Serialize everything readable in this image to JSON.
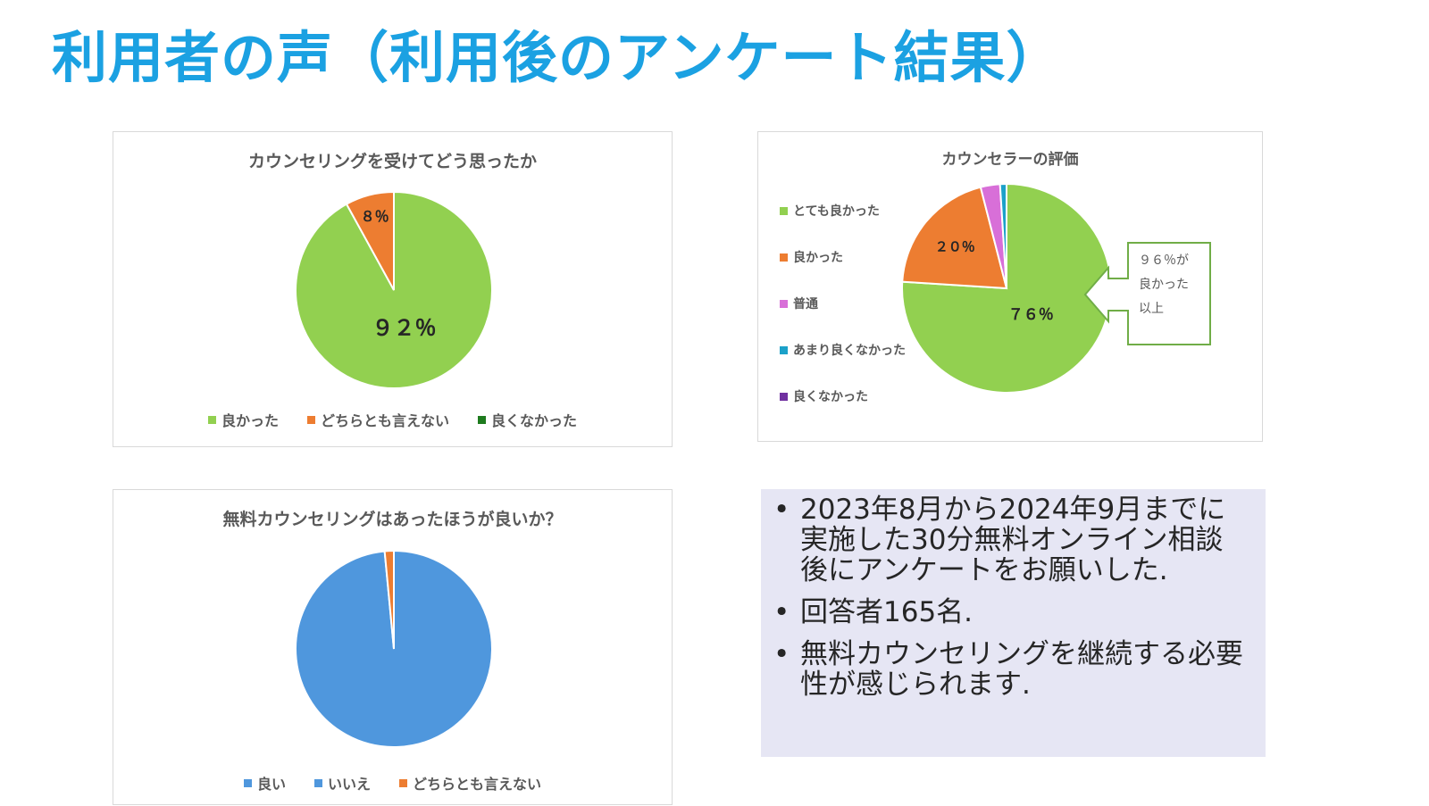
{
  "page": {
    "title": "利用者の声（利用後のアンケート結果）"
  },
  "colors": {
    "green": "#92d050",
    "orange": "#ed7d31",
    "darkgreen": "#1e7b1e",
    "blue": "#4f97dd",
    "pink": "#d86fd8",
    "teal": "#1ba1c9",
    "purple": "#7030a0",
    "callout_border": "#70ad47"
  },
  "chart_data": [
    {
      "type": "pie",
      "title": "カウンセリングを受けてどう思ったか",
      "labels": [
        "良かった",
        "どちらとも言えない",
        "良くなかった"
      ],
      "values": [
        92,
        8,
        0
      ],
      "data_labels": [
        "９２％",
        "８％",
        ""
      ],
      "colors": [
        "#92d050",
        "#ed7d31",
        "#1e7b1e"
      ],
      "legend": "bottom"
    },
    {
      "type": "pie",
      "title": "カウンセラーの評価",
      "labels": [
        "とても良かった",
        "良かった",
        "普通",
        "あまり良くなかった",
        "良くなかった"
      ],
      "values": [
        76,
        20,
        3,
        1,
        0
      ],
      "data_labels": [
        "７６％",
        "２０％",
        "",
        "",
        ""
      ],
      "colors": [
        "#92d050",
        "#ed7d31",
        "#d86fd8",
        "#1ba1c9",
        "#7030a0"
      ],
      "legend": "left",
      "callout": [
        "９６％が",
        "良かった",
        "以上"
      ]
    },
    {
      "type": "pie",
      "title": "無料カウンセリングはあったほうが良いか？",
      "labels": [
        "良い",
        "いいえ",
        "どちらとも言えない"
      ],
      "values": [
        98.5,
        0,
        1.5
      ],
      "data_labels": [
        "",
        "",
        ""
      ],
      "colors": [
        "#4f97dd",
        "#4f97dd",
        "#ed7d31"
      ],
      "legend": "bottom"
    }
  ],
  "notes": [
    "2023年8月から2024年9月までに実施した30分無料オンライン相談後にアンケートをお願いした.",
    "回答者165名.",
    "無料カウンセリングを継続する必要性が感じられます."
  ],
  "bullet": "•"
}
